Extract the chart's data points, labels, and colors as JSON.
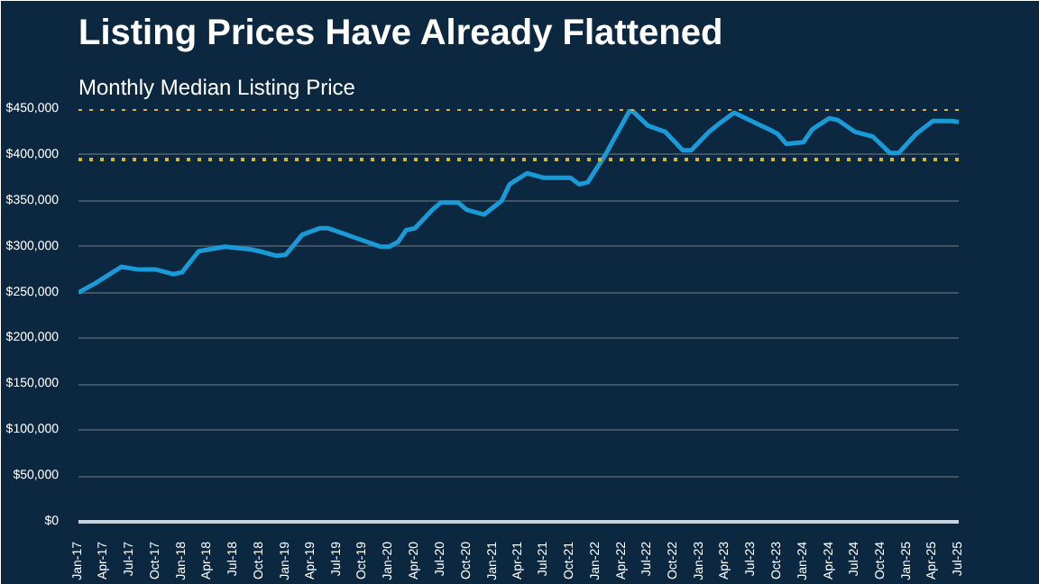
{
  "chart_data": {
    "type": "line",
    "title": "Listing Prices Have Already Flattened",
    "subtitle": "Monthly Median Listing Price",
    "x": [
      "2017-01",
      "2017-03",
      "2017-06",
      "2017-08",
      "2017-10",
      "2017-12",
      "2018-01",
      "2018-03",
      "2018-06",
      "2018-09",
      "2018-10",
      "2018-12",
      "2019-01",
      "2019-03",
      "2019-05",
      "2019-06",
      "2019-09",
      "2019-12",
      "2020-01",
      "2020-02",
      "2020-03",
      "2020-04",
      "2020-06",
      "2020-07",
      "2020-09",
      "2020-10",
      "2020-12",
      "2021-02",
      "2021-03",
      "2021-05",
      "2021-07",
      "2021-10",
      "2021-11",
      "2021-12",
      "2022-02",
      "2022-05",
      "2022-07",
      "2022-09",
      "2022-11",
      "2022-12",
      "2023-02",
      "2023-03",
      "2023-05",
      "2023-07",
      "2023-09",
      "2023-10",
      "2023-11",
      "2024-01",
      "2024-02",
      "2024-04",
      "2024-05",
      "2024-07",
      "2024-09",
      "2024-11",
      "2024-12",
      "2025-02",
      "2025-04",
      "2025-06",
      "2025-07"
    ],
    "series": [
      {
        "color": "#1a9ad6",
        "values": [
          250000,
          260000,
          278000,
          275000,
          275000,
          270000,
          272000,
          295000,
          300000,
          297000,
          295000,
          290000,
          291000,
          313000,
          320000,
          320000,
          310000,
          300000,
          300000,
          305000,
          318000,
          320000,
          340000,
          348000,
          348000,
          340000,
          335000,
          350000,
          368000,
          380000,
          375000,
          375000,
          368000,
          370000,
          400000,
          450000,
          432000,
          425000,
          405000,
          405000,
          425000,
          432000,
          446000,
          437000,
          428000,
          423000,
          412000,
          414000,
          428000,
          440000,
          438000,
          425000,
          420000,
          402000,
          402000,
          423000,
          437000,
          437000,
          436000
        ]
      }
    ],
    "xlim": [
      "2017-01",
      "2025-07"
    ],
    "xticks": [
      {
        "value": "2017-01",
        "label": "Jan-17"
      },
      {
        "value": "2017-04",
        "label": "Apr-17"
      },
      {
        "value": "2017-07",
        "label": "Jul-17"
      },
      {
        "value": "2017-10",
        "label": "Oct-17"
      },
      {
        "value": "2018-01",
        "label": "Jan-18"
      },
      {
        "value": "2018-04",
        "label": "Apr-18"
      },
      {
        "value": "2018-07",
        "label": "Jul-18"
      },
      {
        "value": "2018-10",
        "label": "Oct-18"
      },
      {
        "value": "2019-01",
        "label": "Jan-19"
      },
      {
        "value": "2019-04",
        "label": "Apr-19"
      },
      {
        "value": "2019-07",
        "label": "Jul-19"
      },
      {
        "value": "2019-10",
        "label": "Oct-19"
      },
      {
        "value": "2020-01",
        "label": "Jan-20"
      },
      {
        "value": "2020-04",
        "label": "Apr-20"
      },
      {
        "value": "2020-07",
        "label": "Jul-20"
      },
      {
        "value": "2020-10",
        "label": "Oct-20"
      },
      {
        "value": "2021-01",
        "label": "Jan-21"
      },
      {
        "value": "2021-04",
        "label": "Apr-21"
      },
      {
        "value": "2021-07",
        "label": "Jul-21"
      },
      {
        "value": "2021-10",
        "label": "Oct-21"
      },
      {
        "value": "2022-01",
        "label": "Jan-22"
      },
      {
        "value": "2022-04",
        "label": "Apr-22"
      },
      {
        "value": "2022-07",
        "label": "Jul-22"
      },
      {
        "value": "2022-10",
        "label": "Oct-22"
      },
      {
        "value": "2023-01",
        "label": "Jan-23"
      },
      {
        "value": "2023-04",
        "label": "Apr-23"
      },
      {
        "value": "2023-07",
        "label": "Jul-23"
      },
      {
        "value": "2023-10",
        "label": "Oct-23"
      },
      {
        "value": "2024-01",
        "label": "Jan-24"
      },
      {
        "value": "2024-04",
        "label": "Apr-24"
      },
      {
        "value": "2024-07",
        "label": "Jul-24"
      },
      {
        "value": "2024-10",
        "label": "Oct-24"
      },
      {
        "value": "2025-01",
        "label": "Jan-25"
      },
      {
        "value": "2025-04",
        "label": "Apr-25"
      },
      {
        "value": "2025-07",
        "label": "Jul-25"
      }
    ],
    "ylim": [
      0,
      450000
    ],
    "yticks": [
      {
        "value": 0,
        "label": "$0"
      },
      {
        "value": 50000,
        "label": "$50,000"
      },
      {
        "value": 100000,
        "label": "$100,000"
      },
      {
        "value": 150000,
        "label": "$150,000"
      },
      {
        "value": 200000,
        "label": "$200,000"
      },
      {
        "value": 250000,
        "label": "$250,000"
      },
      {
        "value": 300000,
        "label": "$300,000"
      },
      {
        "value": 350000,
        "label": "$350,000"
      },
      {
        "value": 400000,
        "label": "$400,000"
      },
      {
        "value": 450000,
        "label": "$450,000"
      }
    ],
    "grid": "y",
    "ref_lines": [
      {
        "axis": "y",
        "value": 450000,
        "color": "#d4b72c",
        "line_style": "dotted"
      },
      {
        "axis": "y",
        "value": 395000,
        "color": "#d4b72c",
        "line_style": "dotted"
      }
    ]
  }
}
